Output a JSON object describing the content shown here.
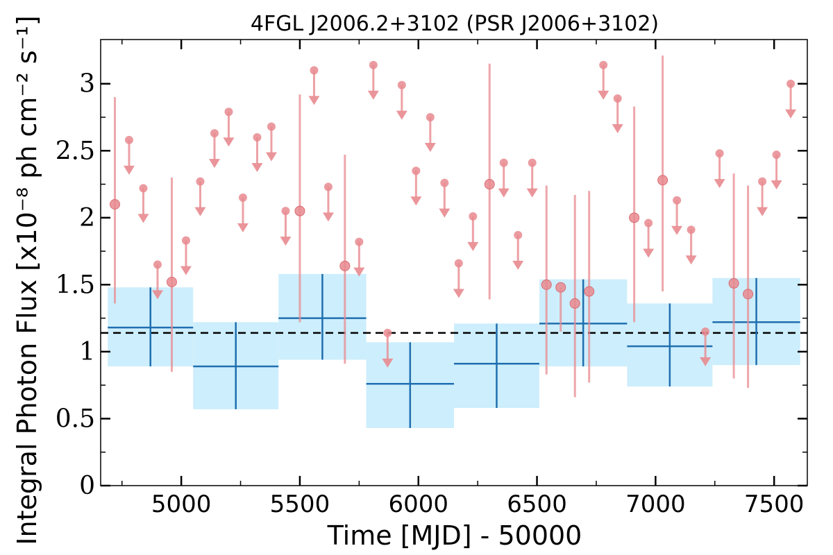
{
  "chart_data": {
    "type": "scatter",
    "title": "4FGL J2006.2+3102 (PSR J2006+3102)",
    "xlabel": "Time [MJD] - 50000",
    "ylabel": "Integral Photon Flux [x10⁻⁸ ph cm⁻² s⁻¹]",
    "xlim": [
      4660,
      7640
    ],
    "ylim": [
      0,
      3.33
    ],
    "x_ticks": [
      5000,
      5500,
      6000,
      6500,
      7000,
      7500
    ],
    "y_ticks": [
      0,
      0.5,
      1,
      1.5,
      2,
      2.5,
      3
    ],
    "y_tick_labels": [
      "0",
      "0.5",
      "1",
      "1.5",
      "2",
      "2.5",
      "3"
    ],
    "mean_flux": 1.14,
    "colors": {
      "points": "#e88a8f",
      "bins": "#1f6fb0",
      "bin_band": "#cdeefc",
      "mean_line": "#000000"
    },
    "series": [
      {
        "kind": "detections",
        "points": [
          {
            "x": 4720,
            "y": 2.1,
            "lo": 1.36,
            "hi": 2.9
          },
          {
            "x": 4960,
            "y": 1.52,
            "lo": 0.85,
            "hi": 2.3
          },
          {
            "x": 5500,
            "y": 2.05,
            "lo": 1.22,
            "hi": 2.92
          },
          {
            "x": 5690,
            "y": 1.64,
            "lo": 0.91,
            "hi": 2.47
          },
          {
            "x": 6300,
            "y": 2.25,
            "lo": 1.39,
            "hi": 3.15
          },
          {
            "x": 6540,
            "y": 1.5,
            "lo": 0.83,
            "hi": 2.24
          },
          {
            "x": 6600,
            "y": 1.48,
            "lo": 1.15,
            "hi": 1.48
          },
          {
            "x": 6660,
            "y": 1.36,
            "lo": 0.66,
            "hi": 2.17
          },
          {
            "x": 6720,
            "y": 1.45,
            "lo": 0.77,
            "hi": 2.2
          },
          {
            "x": 6910,
            "y": 2.0,
            "lo": 1.22,
            "hi": 2.83
          },
          {
            "x": 7030,
            "y": 2.28,
            "lo": 1.45,
            "hi": 3.21
          },
          {
            "x": 7330,
            "y": 1.51,
            "lo": 0.8,
            "hi": 2.33
          },
          {
            "x": 7390,
            "y": 1.43,
            "lo": 0.73,
            "hi": 2.24
          }
        ]
      },
      {
        "kind": "upper_limits",
        "points": [
          {
            "x": 4780,
            "y": 2.58
          },
          {
            "x": 4840,
            "y": 2.22
          },
          {
            "x": 4900,
            "y": 1.65
          },
          {
            "x": 5020,
            "y": 1.83
          },
          {
            "x": 5080,
            "y": 2.27
          },
          {
            "x": 5140,
            "y": 2.63
          },
          {
            "x": 5200,
            "y": 2.79
          },
          {
            "x": 5260,
            "y": 2.15
          },
          {
            "x": 5320,
            "y": 2.6
          },
          {
            "x": 5380,
            "y": 2.68
          },
          {
            "x": 5440,
            "y": 2.05
          },
          {
            "x": 5560,
            "y": 3.1
          },
          {
            "x": 5620,
            "y": 2.23
          },
          {
            "x": 5750,
            "y": 1.82
          },
          {
            "x": 5810,
            "y": 3.14
          },
          {
            "x": 5870,
            "y": 1.14
          },
          {
            "x": 5930,
            "y": 2.99
          },
          {
            "x": 5990,
            "y": 2.35
          },
          {
            "x": 6050,
            "y": 2.75
          },
          {
            "x": 6110,
            "y": 2.26
          },
          {
            "x": 6170,
            "y": 1.66
          },
          {
            "x": 6230,
            "y": 2.01
          },
          {
            "x": 6360,
            "y": 2.41
          },
          {
            "x": 6420,
            "y": 1.87
          },
          {
            "x": 6480,
            "y": 2.41
          },
          {
            "x": 6780,
            "y": 3.14
          },
          {
            "x": 6840,
            "y": 2.89
          },
          {
            "x": 6970,
            "y": 1.96
          },
          {
            "x": 7090,
            "y": 2.13
          },
          {
            "x": 7150,
            "y": 1.91
          },
          {
            "x": 7210,
            "y": 1.15
          },
          {
            "x": 7270,
            "y": 2.48
          },
          {
            "x": 7450,
            "y": 2.27
          },
          {
            "x": 7510,
            "y": 2.47
          },
          {
            "x": 7570,
            "y": 3.0
          }
        ]
      },
      {
        "kind": "yearly_bins",
        "bins": [
          {
            "x0": 4690,
            "x1": 5050,
            "xc": 4870,
            "y": 1.18,
            "lo": 0.89,
            "hi": 1.48
          },
          {
            "x0": 5050,
            "x1": 5410,
            "xc": 5230,
            "y": 0.89,
            "lo": 0.57,
            "hi": 1.22
          },
          {
            "x0": 5410,
            "x1": 5780,
            "xc": 5595,
            "y": 1.25,
            "lo": 0.94,
            "hi": 1.58
          },
          {
            "x0": 5780,
            "x1": 6150,
            "xc": 5965,
            "y": 0.76,
            "lo": 0.43,
            "hi": 1.07
          },
          {
            "x0": 6150,
            "x1": 6510,
            "xc": 6330,
            "y": 0.91,
            "lo": 0.58,
            "hi": 1.21
          },
          {
            "x0": 6510,
            "x1": 6880,
            "xc": 6695,
            "y": 1.21,
            "lo": 0.89,
            "hi": 1.54
          },
          {
            "x0": 6880,
            "x1": 7240,
            "xc": 7060,
            "y": 1.04,
            "lo": 0.74,
            "hi": 1.36
          },
          {
            "x0": 7240,
            "x1": 7610,
            "xc": 7425,
            "y": 1.22,
            "lo": 0.9,
            "hi": 1.55
          }
        ]
      }
    ]
  }
}
